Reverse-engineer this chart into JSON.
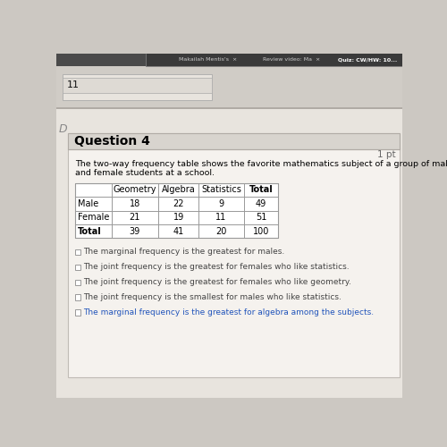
{
  "title_top": "Question 4",
  "points_label": "1 pt",
  "description_line1": "The two-way frequency table shows the favorite mathematics subject of a group of male",
  "description_line2": "and female students at a school.",
  "table_headers": [
    "",
    "Geometry",
    "Algebra",
    "Statistics",
    "Total"
  ],
  "table_rows": [
    [
      "Male",
      "18",
      "22",
      "9",
      "49"
    ],
    [
      "Female",
      "21",
      "19",
      "11",
      "51"
    ],
    [
      "Total",
      "39",
      "41",
      "20",
      "100"
    ]
  ],
  "options": [
    "The marginal frequency is the greatest for males.",
    "The joint frequency is the greatest for females who like statistics.",
    "The joint frequency is the greatest for females who like geometry.",
    "The joint frequency is the smallest for males who like statistics.",
    "The marginal frequency is the greatest for algebra among the subjects."
  ],
  "bg_color": "#ccc8c2",
  "page_bg": "#e8e4de",
  "card_color": "#f5f2ee",
  "browser_bar_color": "#555555",
  "browser_tab_active": "#404040",
  "question_header_color": "#d8d4ce",
  "question_header_line_color": "#b0aca6",
  "last_option_color": "#2255bb",
  "normal_option_color": "#444444",
  "table_border_color": "#999999",
  "table_header_bg": "#f0ede8",
  "input_box_color": "#dedad4",
  "input_border_color": "#aaaaaa",
  "prev_section_bg": "#d0ccc6",
  "checkbox_border": "#999999",
  "d_marker_color": "#888888"
}
